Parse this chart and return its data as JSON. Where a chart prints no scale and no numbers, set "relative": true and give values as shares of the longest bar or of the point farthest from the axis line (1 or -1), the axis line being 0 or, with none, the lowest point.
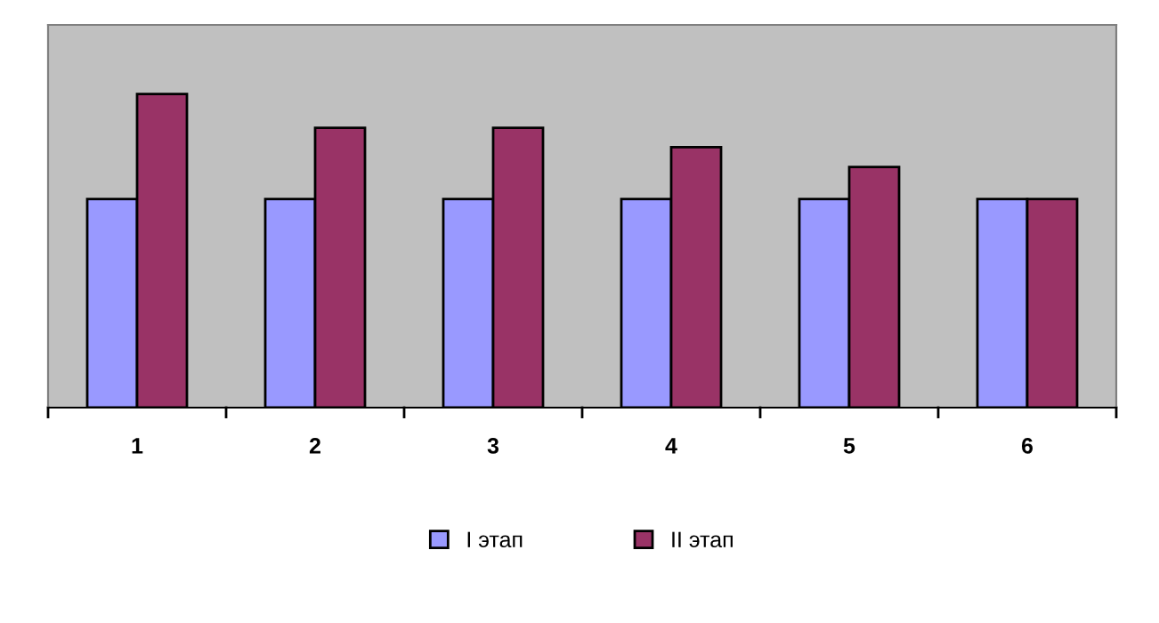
{
  "chart_data": {
    "type": "bar",
    "relative": true,
    "categories": [
      "1",
      "2",
      "3",
      "4",
      "5",
      "6"
    ],
    "series": [
      {
        "name": "I этап",
        "color": "#9999ff",
        "values": [
          0.665,
          0.665,
          0.665,
          0.665,
          0.665,
          0.665
        ]
      },
      {
        "name": "II этап",
        "color": "#993366",
        "values": [
          1,
          0.892,
          0.892,
          0.83,
          0.767,
          0.665
        ]
      }
    ],
    "legend": "bottom",
    "grid": false
  }
}
